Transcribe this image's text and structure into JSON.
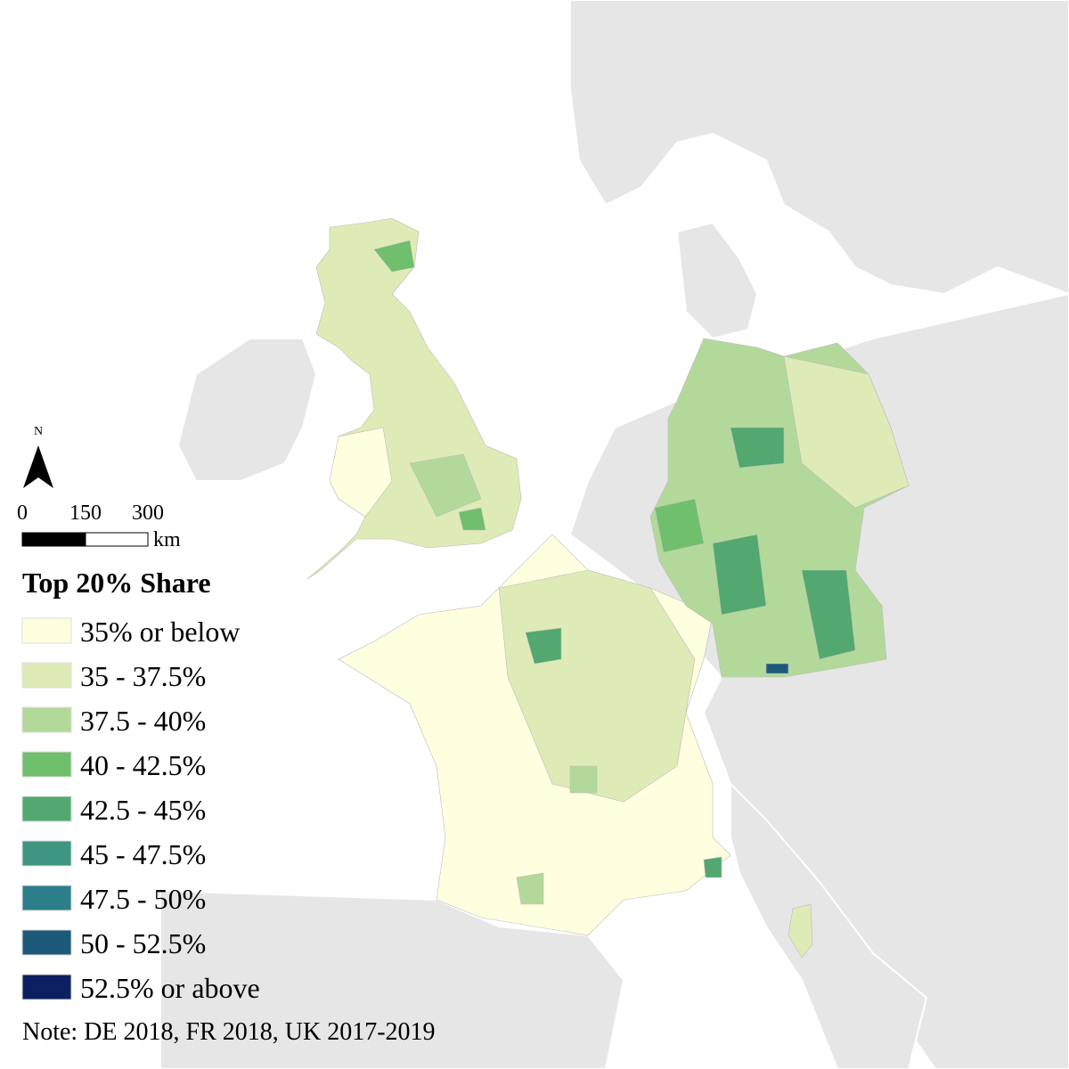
{
  "north_arrow": {
    "label": "N"
  },
  "scale_bar": {
    "labels": [
      "0",
      "150",
      "300"
    ],
    "unit": "km"
  },
  "legend": {
    "title": "Top 20% Share",
    "items": [
      {
        "label": "35% or below",
        "color": "#ffffe0"
      },
      {
        "label": "35 - 37.5%",
        "color": "#dfebb6"
      },
      {
        "label": "37.5 - 40%",
        "color": "#b3d99a"
      },
      {
        "label": "40 - 42.5%",
        "color": "#6fbf6c"
      },
      {
        "label": "42.5 - 45%",
        "color": "#52a86e"
      },
      {
        "label": "45 - 47.5%",
        "color": "#3e9680"
      },
      {
        "label": "47.5 - 50%",
        "color": "#2c7f8a"
      },
      {
        "label": "50 - 52.5%",
        "color": "#1d5a7a"
      },
      {
        "label": "52.5% or above",
        "color": "#0c2061"
      }
    ]
  },
  "note": "Note: DE 2018, FR 2018, UK 2017-2019"
}
